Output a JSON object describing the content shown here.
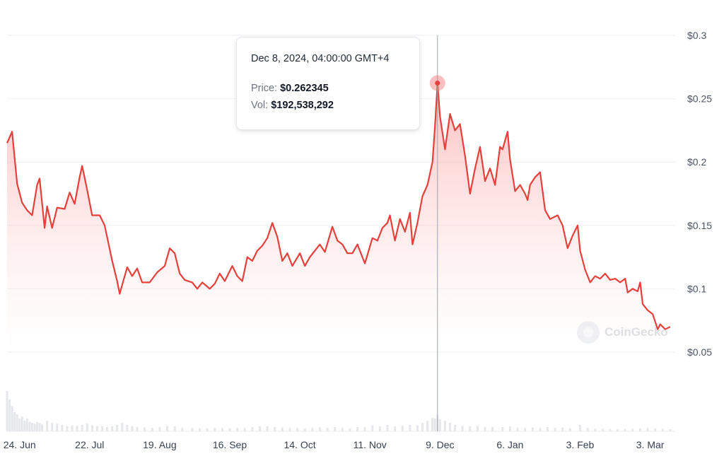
{
  "chart_data": {
    "type": "area",
    "title": "",
    "xlabel": "",
    "ylabel": "",
    "currency": "$",
    "ylim": [
      0.0,
      0.3
    ],
    "yticks": [
      {
        "value": 0.05,
        "label": "$0.05"
      },
      {
        "value": 0.1,
        "label": "$0.1"
      },
      {
        "value": 0.15,
        "label": "$0.15"
      },
      {
        "value": 0.2,
        "label": "$0.2"
      },
      {
        "value": 0.25,
        "label": "$0.25"
      },
      {
        "value": 0.3,
        "label": "$0.3"
      }
    ],
    "xlim": [
      "2024-06-19",
      "2025-03-13"
    ],
    "xticks": [
      {
        "date": "2024-06-24",
        "label": "24. Jun"
      },
      {
        "date": "2024-07-22",
        "label": "22. Jul"
      },
      {
        "date": "2024-08-19",
        "label": "19. Aug"
      },
      {
        "date": "2024-09-16",
        "label": "16. Sep"
      },
      {
        "date": "2024-10-14",
        "label": "14. Oct"
      },
      {
        "date": "2024-11-11",
        "label": "11. Nov"
      },
      {
        "date": "2024-12-09",
        "label": "9. Dec"
      },
      {
        "date": "2025-01-06",
        "label": "6. Jan"
      },
      {
        "date": "2025-02-03",
        "label": "3. Feb"
      },
      {
        "date": "2025-03-03",
        "label": "3. Mar"
      }
    ],
    "grid": true,
    "series": [
      {
        "color": "#e5403b",
        "points": [
          [
            "2024-06-19",
            0.215
          ],
          [
            "2024-06-21",
            0.224
          ],
          [
            "2024-06-23",
            0.183
          ],
          [
            "2024-06-25",
            0.168
          ],
          [
            "2024-06-27",
            0.162
          ],
          [
            "2024-06-29",
            0.158
          ],
          [
            "2024-07-01",
            0.182
          ],
          [
            "2024-07-02",
            0.187
          ],
          [
            "2024-07-04",
            0.148
          ],
          [
            "2024-07-05",
            0.165
          ],
          [
            "2024-07-07",
            0.148
          ],
          [
            "2024-07-09",
            0.164
          ],
          [
            "2024-07-12",
            0.163
          ],
          [
            "2024-07-14",
            0.176
          ],
          [
            "2024-07-16",
            0.167
          ],
          [
            "2024-07-18",
            0.188
          ],
          [
            "2024-07-19",
            0.197
          ],
          [
            "2024-07-21",
            0.178
          ],
          [
            "2024-07-23",
            0.158
          ],
          [
            "2024-07-26",
            0.158
          ],
          [
            "2024-07-28",
            0.15
          ],
          [
            "2024-07-31",
            0.122
          ],
          [
            "2024-08-02",
            0.106
          ],
          [
            "2024-08-03",
            0.096
          ],
          [
            "2024-08-04",
            0.103
          ],
          [
            "2024-08-06",
            0.117
          ],
          [
            "2024-08-08",
            0.11
          ],
          [
            "2024-08-10",
            0.116
          ],
          [
            "2024-08-12",
            0.105
          ],
          [
            "2024-08-15",
            0.105
          ],
          [
            "2024-08-18",
            0.113
          ],
          [
            "2024-08-21",
            0.118
          ],
          [
            "2024-08-23",
            0.132
          ],
          [
            "2024-08-25",
            0.128
          ],
          [
            "2024-08-27",
            0.112
          ],
          [
            "2024-08-29",
            0.107
          ],
          [
            "2024-09-01",
            0.105
          ],
          [
            "2024-09-03",
            0.1
          ],
          [
            "2024-09-05",
            0.105
          ],
          [
            "2024-09-08",
            0.1
          ],
          [
            "2024-09-10",
            0.104
          ],
          [
            "2024-09-12",
            0.112
          ],
          [
            "2024-09-14",
            0.106
          ],
          [
            "2024-09-17",
            0.118
          ],
          [
            "2024-09-19",
            0.11
          ],
          [
            "2024-09-21",
            0.106
          ],
          [
            "2024-09-23",
            0.125
          ],
          [
            "2024-09-25",
            0.122
          ],
          [
            "2024-09-27",
            0.13
          ],
          [
            "2024-09-29",
            0.134
          ],
          [
            "2024-10-01",
            0.14
          ],
          [
            "2024-10-03",
            0.152
          ],
          [
            "2024-10-05",
            0.141
          ],
          [
            "2024-10-07",
            0.122
          ],
          [
            "2024-10-09",
            0.128
          ],
          [
            "2024-10-11",
            0.118
          ],
          [
            "2024-10-14",
            0.128
          ],
          [
            "2024-10-16",
            0.118
          ],
          [
            "2024-10-18",
            0.125
          ],
          [
            "2024-10-20",
            0.13
          ],
          [
            "2024-10-22",
            0.135
          ],
          [
            "2024-10-24",
            0.129
          ],
          [
            "2024-10-27",
            0.149
          ],
          [
            "2024-10-29",
            0.138
          ],
          [
            "2024-10-31",
            0.135
          ],
          [
            "2024-11-02",
            0.128
          ],
          [
            "2024-11-04",
            0.128
          ],
          [
            "2024-11-06",
            0.135
          ],
          [
            "2024-11-09",
            0.12
          ],
          [
            "2024-11-12",
            0.14
          ],
          [
            "2024-11-14",
            0.138
          ],
          [
            "2024-11-16",
            0.148
          ],
          [
            "2024-11-18",
            0.152
          ],
          [
            "2024-11-19",
            0.158
          ],
          [
            "2024-11-21",
            0.138
          ],
          [
            "2024-11-23",
            0.155
          ],
          [
            "2024-11-25",
            0.145
          ],
          [
            "2024-11-27",
            0.16
          ],
          [
            "2024-11-28",
            0.135
          ],
          [
            "2024-11-30",
            0.152
          ],
          [
            "2024-12-02",
            0.173
          ],
          [
            "2024-12-04",
            0.182
          ],
          [
            "2024-12-06",
            0.2
          ],
          [
            "2024-12-07",
            0.228
          ],
          [
            "2024-12-08",
            0.262345
          ],
          [
            "2024-12-09",
            0.236
          ],
          [
            "2024-12-11",
            0.21
          ],
          [
            "2024-12-13",
            0.238
          ],
          [
            "2024-12-15",
            0.225
          ],
          [
            "2024-12-17",
            0.23
          ],
          [
            "2024-12-19",
            0.205
          ],
          [
            "2024-12-21",
            0.175
          ],
          [
            "2024-12-23",
            0.195
          ],
          [
            "2024-12-25",
            0.212
          ],
          [
            "2024-12-27",
            0.185
          ],
          [
            "2024-12-29",
            0.195
          ],
          [
            "2024-12-31",
            0.182
          ],
          [
            "2025-01-02",
            0.212
          ],
          [
            "2025-01-03",
            0.21
          ],
          [
            "2025-01-05",
            0.224
          ],
          [
            "2025-01-06",
            0.202
          ],
          [
            "2025-01-08",
            0.177
          ],
          [
            "2025-01-10",
            0.182
          ],
          [
            "2025-01-12",
            0.175
          ],
          [
            "2025-01-13",
            0.17
          ],
          [
            "2025-01-14",
            0.182
          ],
          [
            "2025-01-16",
            0.188
          ],
          [
            "2025-01-18",
            0.192
          ],
          [
            "2025-01-20",
            0.162
          ],
          [
            "2025-01-22",
            0.155
          ],
          [
            "2025-01-25",
            0.158
          ],
          [
            "2025-01-27",
            0.15
          ],
          [
            "2025-01-29",
            0.132
          ],
          [
            "2025-01-31",
            0.142
          ],
          [
            "2025-02-02",
            0.15
          ],
          [
            "2025-02-03",
            0.13
          ],
          [
            "2025-02-05",
            0.115
          ],
          [
            "2025-02-07",
            0.105
          ],
          [
            "2025-02-09",
            0.11
          ],
          [
            "2025-02-11",
            0.108
          ],
          [
            "2025-02-13",
            0.112
          ],
          [
            "2025-02-15",
            0.107
          ],
          [
            "2025-02-17",
            0.108
          ],
          [
            "2025-02-19",
            0.105
          ],
          [
            "2025-02-21",
            0.108
          ],
          [
            "2025-02-22",
            0.097
          ],
          [
            "2025-02-24",
            0.1
          ],
          [
            "2025-02-26",
            0.098
          ],
          [
            "2025-02-27",
            0.105
          ],
          [
            "2025-02-28",
            0.088
          ],
          [
            "2025-03-02",
            0.083
          ],
          [
            "2025-03-04",
            0.08
          ],
          [
            "2025-03-06",
            0.068
          ],
          [
            "2025-03-07",
            0.072
          ],
          [
            "2025-03-09",
            0.068
          ],
          [
            "2025-03-11",
            0.07
          ]
        ]
      }
    ],
    "volume": {
      "color": "#e5e7eb",
      "bars": [
        [
          "2024-06-19",
          0.95
        ],
        [
          "2024-06-20",
          0.75
        ],
        [
          "2024-06-21",
          0.6
        ],
        [
          "2024-06-22",
          0.45
        ],
        [
          "2024-06-23",
          0.4
        ],
        [
          "2024-06-24",
          0.3
        ],
        [
          "2024-06-25",
          0.35
        ],
        [
          "2024-06-26",
          0.25
        ],
        [
          "2024-06-27",
          0.3
        ],
        [
          "2024-06-28",
          0.22
        ],
        [
          "2024-06-29",
          0.2
        ],
        [
          "2024-06-30",
          0.18
        ],
        [
          "2024-07-01",
          0.22
        ],
        [
          "2024-07-02",
          0.2
        ],
        [
          "2024-07-03",
          0.16
        ],
        [
          "2024-07-05",
          0.25
        ],
        [
          "2024-07-07",
          0.2
        ],
        [
          "2024-07-09",
          0.18
        ],
        [
          "2024-07-11",
          0.15
        ],
        [
          "2024-07-13",
          0.12
        ],
        [
          "2024-07-15",
          0.14
        ],
        [
          "2024-07-17",
          0.13
        ],
        [
          "2024-07-19",
          0.15
        ],
        [
          "2024-07-21",
          0.18
        ],
        [
          "2024-07-23",
          0.14
        ],
        [
          "2024-07-25",
          0.12
        ],
        [
          "2024-07-27",
          0.12
        ],
        [
          "2024-07-29",
          0.1
        ],
        [
          "2024-07-31",
          0.12
        ],
        [
          "2024-08-02",
          0.15
        ],
        [
          "2024-08-04",
          0.2
        ],
        [
          "2024-08-06",
          0.15
        ],
        [
          "2024-08-08",
          0.12
        ],
        [
          "2024-08-10",
          0.1
        ],
        [
          "2024-08-13",
          0.09
        ],
        [
          "2024-08-16",
          0.08
        ],
        [
          "2024-08-19",
          0.1
        ],
        [
          "2024-08-22",
          0.12
        ],
        [
          "2024-08-25",
          0.12
        ],
        [
          "2024-08-28",
          0.08
        ],
        [
          "2024-09-01",
          0.08
        ],
        [
          "2024-09-04",
          0.07
        ],
        [
          "2024-09-07",
          0.07
        ],
        [
          "2024-09-10",
          0.08
        ],
        [
          "2024-09-13",
          0.08
        ],
        [
          "2024-09-16",
          0.07
        ],
        [
          "2024-09-19",
          0.08
        ],
        [
          "2024-09-22",
          0.08
        ],
        [
          "2024-09-25",
          0.1
        ],
        [
          "2024-09-28",
          0.12
        ],
        [
          "2024-10-01",
          0.12
        ],
        [
          "2024-10-04",
          0.1
        ],
        [
          "2024-10-07",
          0.09
        ],
        [
          "2024-10-10",
          0.08
        ],
        [
          "2024-10-13",
          0.08
        ],
        [
          "2024-10-16",
          0.07
        ],
        [
          "2024-10-19",
          0.08
        ],
        [
          "2024-10-22",
          0.09
        ],
        [
          "2024-10-25",
          0.08
        ],
        [
          "2024-10-28",
          0.1
        ],
        [
          "2024-10-31",
          0.08
        ],
        [
          "2024-11-03",
          0.07
        ],
        [
          "2024-11-06",
          0.1
        ],
        [
          "2024-11-09",
          0.1
        ],
        [
          "2024-11-12",
          0.14
        ],
        [
          "2024-11-15",
          0.12
        ],
        [
          "2024-11-18",
          0.15
        ],
        [
          "2024-11-21",
          0.12
        ],
        [
          "2024-11-24",
          0.13
        ],
        [
          "2024-11-27",
          0.15
        ],
        [
          "2024-11-30",
          0.14
        ],
        [
          "2024-12-02",
          0.2
        ],
        [
          "2024-12-04",
          0.25
        ],
        [
          "2024-12-06",
          0.32
        ],
        [
          "2024-12-07",
          0.3
        ],
        [
          "2024-12-08",
          0.38
        ],
        [
          "2024-12-09",
          0.28
        ],
        [
          "2024-12-11",
          0.25
        ],
        [
          "2024-12-13",
          0.2
        ],
        [
          "2024-12-15",
          0.15
        ],
        [
          "2024-12-18",
          0.13
        ],
        [
          "2024-12-21",
          0.12
        ],
        [
          "2024-12-24",
          0.12
        ],
        [
          "2024-12-27",
          0.1
        ],
        [
          "2024-12-30",
          0.1
        ],
        [
          "2025-01-03",
          0.1
        ],
        [
          "2025-01-06",
          0.12
        ],
        [
          "2025-01-09",
          0.09
        ],
        [
          "2025-01-12",
          0.08
        ],
        [
          "2025-01-15",
          0.09
        ],
        [
          "2025-01-18",
          0.08
        ],
        [
          "2025-01-21",
          0.1
        ],
        [
          "2025-01-24",
          0.08
        ],
        [
          "2025-01-27",
          0.09
        ],
        [
          "2025-01-30",
          0.07
        ],
        [
          "2025-02-03",
          0.15
        ],
        [
          "2025-02-06",
          0.08
        ],
        [
          "2025-02-09",
          0.06
        ],
        [
          "2025-02-12",
          0.06
        ],
        [
          "2025-02-15",
          0.05
        ],
        [
          "2025-02-18",
          0.05
        ],
        [
          "2025-02-21",
          0.06
        ],
        [
          "2025-02-24",
          0.06
        ],
        [
          "2025-02-27",
          0.07
        ],
        [
          "2025-03-02",
          0.08
        ],
        [
          "2025-03-05",
          0.07
        ],
        [
          "2025-03-08",
          0.06
        ],
        [
          "2025-03-11",
          0.05
        ]
      ]
    },
    "tooltip": {
      "date": "Dec 8, 2024, 04:00:00 GMT+4",
      "price_label": "Price:",
      "price_value": "$0.262345",
      "vol_label": "Vol:",
      "vol_value": "$192,538,292",
      "point": [
        "2024-12-08",
        0.262345
      ]
    },
    "watermark": "CoinGecko"
  }
}
